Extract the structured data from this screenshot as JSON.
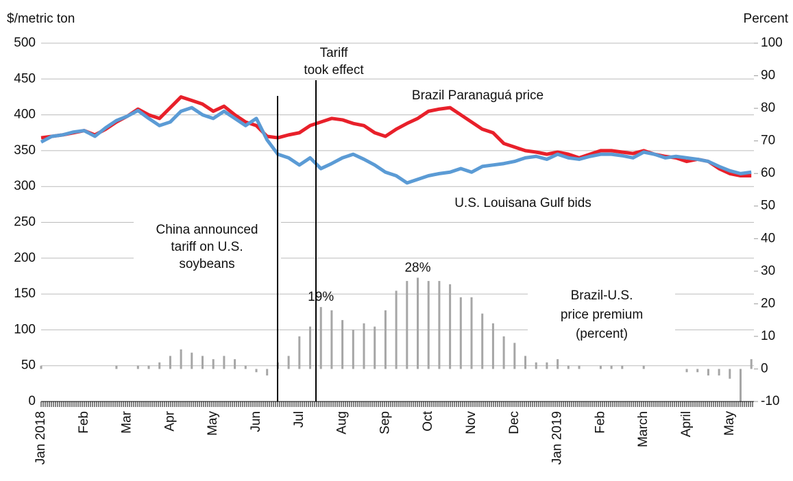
{
  "chart_data": {
    "type": "line",
    "y_label": "$/metric ton",
    "y2_label": "Percent",
    "categories": [
      "Jan 2018",
      null,
      null,
      null,
      "Feb",
      null,
      null,
      null,
      "Mar",
      null,
      null,
      null,
      "Apr",
      null,
      null,
      null,
      "May",
      null,
      null,
      null,
      "Jun",
      null,
      null,
      null,
      "Jul",
      null,
      null,
      null,
      "Aug",
      null,
      null,
      null,
      "Sep",
      null,
      null,
      null,
      "Oct",
      null,
      null,
      null,
      "Nov",
      null,
      null,
      null,
      "Dec",
      null,
      null,
      null,
      "Jan 2019",
      null,
      null,
      null,
      "Feb",
      null,
      null,
      null,
      "March",
      null,
      null,
      null,
      "April",
      null,
      null,
      null,
      "May",
      null,
      null
    ],
    "series": [
      {
        "name": "Brazil Paranaguá price",
        "type": "line",
        "color": "#e8202a",
        "values": [
          368,
          370,
          372,
          375,
          378,
          372,
          380,
          390,
          398,
          408,
          400,
          395,
          410,
          425,
          420,
          415,
          405,
          412,
          400,
          390,
          385,
          370,
          368,
          372,
          375,
          385,
          390,
          395,
          393,
          388,
          385,
          375,
          370,
          380,
          388,
          395,
          405,
          408,
          410,
          400,
          390,
          380,
          375,
          360,
          355,
          350,
          348,
          345,
          348,
          345,
          340,
          345,
          350,
          350,
          348,
          346,
          350,
          345,
          342,
          340,
          335,
          338,
          335,
          325,
          318,
          315,
          315
        ]
      },
      {
        "name": "U.S. Louisana Gulf bids",
        "type": "line",
        "color": "#5b9bd5",
        "values": [
          362,
          370,
          372,
          376,
          378,
          370,
          382,
          392,
          398,
          406,
          395,
          385,
          390,
          405,
          410,
          400,
          395,
          405,
          395,
          385,
          395,
          365,
          345,
          340,
          330,
          340,
          325,
          332,
          340,
          345,
          338,
          330,
          320,
          315,
          305,
          310,
          315,
          318,
          320,
          325,
          320,
          328,
          330,
          332,
          335,
          340,
          342,
          338,
          345,
          340,
          338,
          342,
          345,
          345,
          343,
          340,
          348,
          345,
          340,
          342,
          340,
          338,
          335,
          328,
          322,
          318,
          320
        ]
      },
      {
        "name": "Brazil-U.S. price premium (percent)",
        "type": "bar",
        "axis": "y2",
        "color": "#a6a6a6",
        "values": [
          1,
          0,
          0,
          0,
          0,
          0,
          0,
          1,
          0,
          1,
          1,
          2,
          4,
          6,
          5,
          4,
          3,
          4,
          3,
          1,
          -1,
          -2,
          2,
          4,
          10,
          13,
          19,
          18,
          15,
          12,
          14,
          13,
          18,
          24,
          27,
          28,
          27,
          27,
          26,
          22,
          22,
          17,
          14,
          10,
          8,
          4,
          2,
          2,
          3,
          1,
          1,
          0,
          1,
          1,
          1,
          0,
          1,
          0,
          0,
          0,
          -1,
          -1,
          -2,
          -2,
          -3,
          -10,
          3
        ],
        "value_labels": [
          null,
          null,
          null,
          null,
          null,
          null,
          null,
          null,
          null,
          null,
          null,
          null,
          null,
          null,
          null,
          null,
          null,
          null,
          null,
          null,
          null,
          null,
          null,
          null,
          null,
          null,
          "19%",
          null,
          null,
          null,
          null,
          null,
          null,
          null,
          null,
          "28%",
          null,
          null,
          null,
          null,
          null,
          null,
          null,
          null,
          null,
          null,
          null,
          null,
          null,
          null,
          null,
          null,
          null,
          null,
          null,
          null,
          null,
          null,
          null,
          null,
          null,
          null,
          null,
          null,
          null,
          null,
          null
        ]
      }
    ],
    "annotations": [
      {
        "text": [
          "China announced",
          "tariff on U.S.",
          "soybeans"
        ]
      },
      {
        "text": [
          "Tariff",
          "took effect"
        ]
      }
    ],
    "ylim": [
      0,
      500
    ],
    "yticks": [
      0,
      50,
      100,
      150,
      200,
      250,
      300,
      350,
      400,
      450,
      500
    ],
    "y2lim": [
      -10,
      100
    ],
    "y2ticks": [
      -10,
      0,
      10,
      20,
      30,
      40,
      50,
      60,
      70,
      80,
      90,
      100
    ],
    "grid": true
  }
}
